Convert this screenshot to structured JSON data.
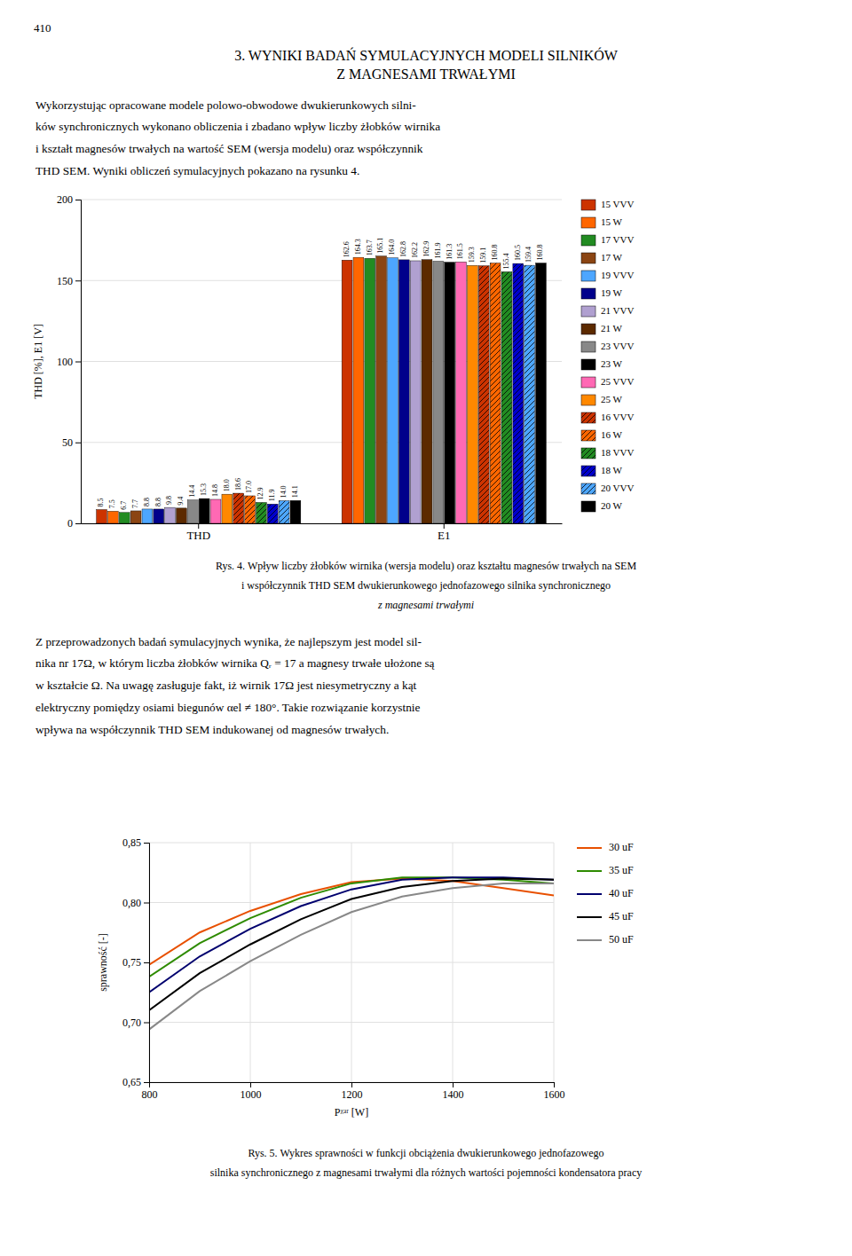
{
  "page_number": "410",
  "section_title": [
    "3. WYNIKI BADAŃ SYMULACYJNYCH MODELI SILNIKÓW",
    "Z MAGNESAMI TRWAŁYMI"
  ],
  "paragraphs": [
    [
      "Wykorzystując opracowane modele polowo-obwodowe dwukierunkowych silni-",
      "ków synchronicznych wykonano obliczenia i zbadano wpływ liczby żłobków wirnika",
      "i kształt magnesów trwałych na wartość SEM (wersja modelu) oraz współczynnik",
      "THD SEM. Wyniki obliczeń symulacyjnych pokazano na rysunku 4."
    ],
    [
      "Z przeprowadzonych badań symulacyjnych wynika, że najlepszym jest model sil-",
      "nika nr 17Ω, w którym liczba żłobków wirnika Qᵣ = 17 a magnesy trwałe ułożone są",
      "w kształcie Ω. Na uwagę zasługuje fakt, iż wirnik 17Ω jest niesymetryczny a kąt",
      "elektryczny pomiędzy osiami biegunów αel ≠ 180°. Takie rozwiązanie korzystnie",
      "wpływa na współczynnik THD SEM indukowanej od magnesów trwałych."
    ]
  ],
  "chart_data": [
    {
      "type": "bar",
      "caption": [
        "Rys. 4. Wpływ liczby żłobków wirnika (wersja modelu) oraz kształtu magnesów trwałych na SEM",
        "i współczynnik THD SEM dwukierunkowego jednofazowego silnika synchronicznego",
        "z magnesami trwałymi"
      ],
      "ylabel": "THD [%], E1 [V]",
      "categories": [
        "THD",
        "E1"
      ],
      "series": [
        {
          "name": "15 VVV",
          "color": "#cc3300",
          "values": [
            8.5,
            162.6
          ],
          "value_labels": [
            "8.5",
            "162.6"
          ]
        },
        {
          "name": "15 W",
          "color": "#ff6600",
          "values": [
            7.5,
            164.3
          ],
          "value_labels": [
            "7.5",
            "164.3"
          ]
        },
        {
          "name": "17 VVV",
          "color": "#228B22",
          "values": [
            6.7,
            163.7
          ],
          "value_labels": [
            "6.7",
            "163.7"
          ]
        },
        {
          "name": "17 W",
          "color": "#8B4513",
          "values": [
            7.7,
            165.1
          ],
          "value_labels": [
            "7.7",
            "165.1"
          ]
        },
        {
          "name": "19 VVV",
          "color": "#4da6ff",
          "values": [
            8.8,
            164.0
          ],
          "value_labels": [
            "8.8",
            "164.0"
          ]
        },
        {
          "name": "19 W",
          "color": "#00008B",
          "values": [
            8.8,
            162.8
          ],
          "value_labels": [
            "8.8",
            "162.8"
          ]
        },
        {
          "name": "21 VVV",
          "color": "#b0a0d0",
          "values": [
            9.8,
            162.2
          ],
          "value_labels": [
            "9.8",
            "162.2"
          ]
        },
        {
          "name": "21 W",
          "color": "#5c2a00",
          "values": [
            9.4,
            162.9
          ],
          "value_labels": [
            "9.4",
            "162.9"
          ]
        },
        {
          "name": "23 VVV",
          "color": "#888888",
          "values": [
            14.4,
            161.9
          ],
          "value_labels": [
            "14.4",
            "161.9"
          ]
        },
        {
          "name": "23 W",
          "color": "#000000",
          "values": [
            15.3,
            161.3
          ],
          "value_labels": [
            "15.3",
            "161.3"
          ]
        },
        {
          "name": "25 VVV",
          "color": "#ff69b4",
          "values": [
            14.8,
            161.5
          ],
          "value_labels": [
            "14.8",
            "161.5"
          ]
        },
        {
          "name": "25 W",
          "color": "#ff8800",
          "values": [
            18.0,
            159.3
          ],
          "value_labels": [
            "18.0",
            "159.3"
          ]
        },
        {
          "name": "16 VVV",
          "color": "#cc3300",
          "marker": "hatch",
          "values": [
            18.6,
            159.1
          ],
          "value_labels": [
            "18.6",
            "159.1"
          ]
        },
        {
          "name": "16 W",
          "color": "#ff6600",
          "marker": "hatch",
          "values": [
            17.0,
            160.8
          ],
          "value_labels": [
            "17.0",
            "160.8"
          ]
        },
        {
          "name": "18 VVV",
          "color": "#228B22",
          "marker": "hatch",
          "values": [
            12.9,
            155.4
          ],
          "value_labels": [
            "12.9",
            "155.4"
          ]
        },
        {
          "name": "18 W",
          "color": "#0000cc",
          "marker": "hatch",
          "values": [
            11.9,
            160.5
          ],
          "value_labels": [
            "11.9",
            "160.5"
          ]
        },
        {
          "name": "20 VVV",
          "color": "#4da6ff",
          "marker": "hatch",
          "values": [
            14.0,
            159.4
          ],
          "value_labels": [
            "14.0",
            "159.4"
          ]
        },
        {
          "name": "20 W",
          "color": "#000000",
          "marker": "hatch",
          "values": [
            14.1,
            160.8
          ],
          "value_labels": [
            "14.1",
            "160.8"
          ]
        }
      ],
      "ylim": [
        0,
        200
      ],
      "yticks": [
        0,
        50,
        100,
        150,
        200
      ],
      "grid": true,
      "legend": "right",
      "data_labels": true
    },
    {
      "type": "line",
      "caption": [
        "Rys. 5. Wykres sprawności w funkcji obciążenia dwukierunkowego jednofazowego",
        "silnika synchronicznego z magnesami trwałymi dla różnych wartości pojemności kondensatora pracy"
      ],
      "xlabel": "Pᵡᵃʳ [W]",
      "ylabel": "sprawność [-]",
      "x": [
        800,
        900,
        1000,
        1100,
        1200,
        1300,
        1400,
        1500,
        1600
      ],
      "series": [
        {
          "name": "30 uF",
          "color": "#e85000",
          "values": [
            0.748,
            0.775,
            0.793,
            0.807,
            0.817,
            0.82,
            0.818,
            0.812,
            0.806
          ]
        },
        {
          "name": "35 uF",
          "color": "#2e8b00",
          "values": [
            0.738,
            0.766,
            0.787,
            0.804,
            0.816,
            0.821,
            0.821,
            0.819,
            0.816
          ]
        },
        {
          "name": "40 uF",
          "color": "#00006e",
          "values": [
            0.725,
            0.755,
            0.778,
            0.797,
            0.811,
            0.819,
            0.821,
            0.821,
            0.819
          ]
        },
        {
          "name": "45 uF",
          "color": "#000000",
          "values": [
            0.71,
            0.741,
            0.765,
            0.786,
            0.803,
            0.813,
            0.818,
            0.82,
            0.819
          ]
        },
        {
          "name": "50 uF",
          "color": "#888888",
          "values": [
            0.694,
            0.726,
            0.751,
            0.773,
            0.792,
            0.805,
            0.812,
            0.816,
            0.816
          ]
        }
      ],
      "xlim": [
        800,
        1600
      ],
      "ylim": [
        0.65,
        0.85
      ],
      "xticks": [
        800,
        1000,
        1200,
        1400,
        1600
      ],
      "yticks": [
        {
          "value": 0.65,
          "label": "0,65"
        },
        {
          "value": 0.7,
          "label": "0,70"
        },
        {
          "value": 0.75,
          "label": "0,75"
        },
        {
          "value": 0.8,
          "label": "0,80"
        },
        {
          "value": 0.85,
          "label": "0,85"
        }
      ],
      "grid": true,
      "legend": "right"
    }
  ]
}
